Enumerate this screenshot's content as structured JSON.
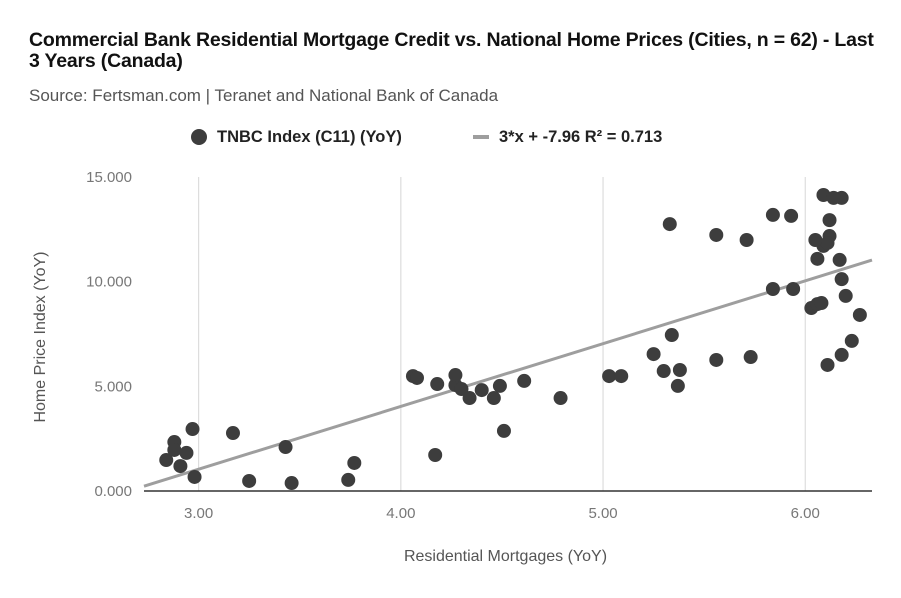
{
  "header": {
    "title": "Commercial Bank Residential Mortgage Credit vs. National Home Prices (Cities, n = 62) - Last 3 Years (Canada)",
    "subtitle": "Source: Fertsman.com | Teranet and National Bank of Canada"
  },
  "legend": {
    "series_label": "TNBC Index (C11) (YoY)",
    "trend_label": "3*x + -7.96 R² = 0.713"
  },
  "axes": {
    "xlabel": "Residential Mortgages (YoY)",
    "ylabel": "Home Price Index (YoY)",
    "xticks": [
      "3.00",
      "4.00",
      "5.00",
      "6.00"
    ],
    "yticks": [
      "0.000",
      "5.000",
      "10.000",
      "15.000"
    ]
  },
  "colors": {
    "point": "#3d3d3d",
    "trendline": "#9e9e9e",
    "grid": "#dddddd",
    "axis": "#333333"
  },
  "chart_data": {
    "type": "scatter",
    "title": "Commercial Bank Residential Mortgage Credit vs. National Home Prices (Cities, n = 62) - Last 3 Years (Canada)",
    "subtitle": "Source: Fertsman.com | Teranet and National Bank of Canada",
    "xlabel": "Residential Mortgages (YoY)",
    "ylabel": "Home Price Index (YoY)",
    "xlim": [
      2.73,
      6.33
    ],
    "ylim": [
      0,
      15
    ],
    "xticks": [
      3,
      4,
      5,
      6
    ],
    "yticks": [
      0,
      5,
      10,
      15
    ],
    "grid": "vertical",
    "legend_position": "top",
    "series": [
      {
        "name": "TNBC Index (C11) (YoY)",
        "type": "scatter",
        "points": [
          [
            2.84,
            1.48
          ],
          [
            2.88,
            2.34
          ],
          [
            2.88,
            1.96
          ],
          [
            2.94,
            1.82
          ],
          [
            2.91,
            1.19
          ],
          [
            2.97,
            2.96
          ],
          [
            2.98,
            0.67
          ],
          [
            3.17,
            2.77
          ],
          [
            3.25,
            0.48
          ],
          [
            3.43,
            2.1
          ],
          [
            3.46,
            0.38
          ],
          [
            3.74,
            0.53
          ],
          [
            3.77,
            1.34
          ],
          [
            4.06,
            5.49
          ],
          [
            4.08,
            5.4
          ],
          [
            4.18,
            5.11
          ],
          [
            4.27,
            5.06
          ],
          [
            4.27,
            5.54
          ],
          [
            4.3,
            4.87
          ],
          [
            4.34,
            4.44
          ],
          [
            4.4,
            4.82
          ],
          [
            4.46,
            4.44
          ],
          [
            4.49,
            5.02
          ],
          [
            4.61,
            5.26
          ],
          [
            4.17,
            1.72
          ],
          [
            4.51,
            2.87
          ],
          [
            4.79,
            4.44
          ],
          [
            5.03,
            5.49
          ],
          [
            5.09,
            5.49
          ],
          [
            5.25,
            6.54
          ],
          [
            5.3,
            5.73
          ],
          [
            5.34,
            7.45
          ],
          [
            5.37,
            5.02
          ],
          [
            5.38,
            5.78
          ],
          [
            5.56,
            6.26
          ],
          [
            5.73,
            6.4
          ],
          [
            5.33,
            12.75
          ],
          [
            5.56,
            12.23
          ],
          [
            5.71,
            11.99
          ],
          [
            5.84,
            9.65
          ],
          [
            5.84,
            13.19
          ],
          [
            5.93,
            13.14
          ],
          [
            5.94,
            9.65
          ],
          [
            6.09,
            14.14
          ],
          [
            6.18,
            14.0
          ],
          [
            6.14,
            14.0
          ],
          [
            6.12,
            12.94
          ],
          [
            6.09,
            11.71
          ],
          [
            6.12,
            12.18
          ],
          [
            6.11,
            11.85
          ],
          [
            6.05,
            11.99
          ],
          [
            6.06,
            11.09
          ],
          [
            6.17,
            11.04
          ],
          [
            6.18,
            10.12
          ],
          [
            6.2,
            9.32
          ],
          [
            6.03,
            8.74
          ],
          [
            6.06,
            8.93
          ],
          [
            6.08,
            8.98
          ],
          [
            6.27,
            8.41
          ],
          [
            6.23,
            7.17
          ],
          [
            6.18,
            6.5
          ],
          [
            6.11,
            6.02
          ]
        ]
      },
      {
        "name": "3*x + -7.96 R² = 0.713",
        "type": "line",
        "equation": "y = 3*x - 7.96",
        "r_squared": 0.713,
        "points": [
          [
            2.73,
            0.23
          ],
          [
            6.33,
            11.03
          ]
        ]
      }
    ]
  }
}
